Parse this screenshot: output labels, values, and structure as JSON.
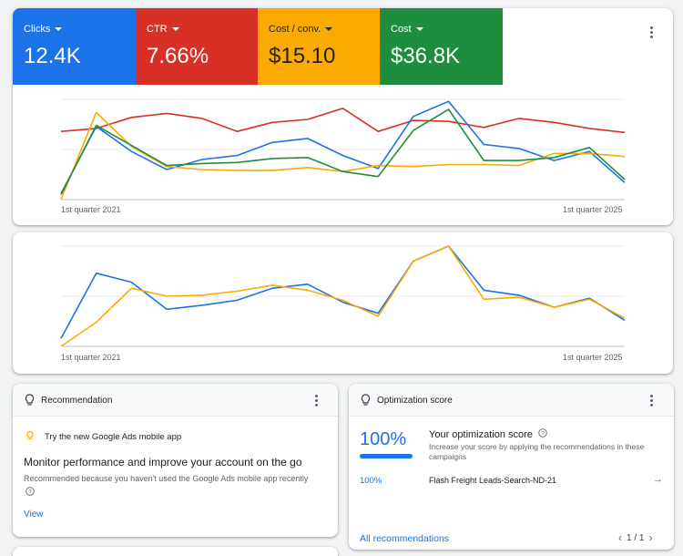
{
  "metrics": [
    {
      "label": "Clicks",
      "value": "12.4K",
      "color": "#1a73e8"
    },
    {
      "label": "CTR",
      "value": "7.66%",
      "color": "#d93025"
    },
    {
      "label": "Cost / conv.",
      "value": "$15.10",
      "color": "#f9ab00"
    },
    {
      "label": "Cost",
      "value": "$36.8K",
      "color": "#1e8e3e"
    }
  ],
  "chart1": {
    "x_start": "1st quarter 2021",
    "x_end": "1st quarter 2025"
  },
  "chart2": {
    "x_start": "1st quarter 2021",
    "x_end": "1st quarter 2025"
  },
  "chart_data": [
    {
      "type": "line",
      "xlabels": [
        "1st quarter 2021",
        "1st quarter 2025"
      ],
      "grid": true,
      "series": [
        {
          "color": "#d93025",
          "values": [
            0.68,
            0.71,
            0.82,
            0.86,
            0.81,
            0.68,
            0.77,
            0.8,
            0.91,
            0.68,
            0.79,
            0.78,
            0.72,
            0.81,
            0.77,
            0.71,
            0.67
          ]
        },
        {
          "color": "#1a73e8",
          "values": [
            0.06,
            0.73,
            0.48,
            0.3,
            0.4,
            0.44,
            0.57,
            0.61,
            0.44,
            0.31,
            0.83,
            0.98,
            0.55,
            0.51,
            0.39,
            0.48,
            0.17
          ]
        },
        {
          "color": "#f9ab00",
          "values": [
            0.0,
            0.87,
            0.53,
            0.33,
            0.3,
            0.29,
            0.29,
            0.32,
            0.28,
            0.34,
            0.33,
            0.35,
            0.35,
            0.34,
            0.46,
            0.46,
            0.43
          ]
        },
        {
          "color": "#1e8e3e",
          "values": [
            0.05,
            0.74,
            0.54,
            0.34,
            0.36,
            0.37,
            0.41,
            0.42,
            0.28,
            0.23,
            0.69,
            0.9,
            0.39,
            0.39,
            0.42,
            0.52,
            0.2
          ]
        }
      ]
    },
    {
      "type": "line",
      "xlabels": [
        "1st quarter 2021",
        "1st quarter 2025"
      ],
      "grid": true,
      "series": [
        {
          "color": "#1a73e8",
          "values": [
            0.08,
            0.73,
            0.64,
            0.37,
            0.41,
            0.46,
            0.58,
            0.62,
            0.44,
            0.33,
            0.85,
            1.0,
            0.56,
            0.51,
            0.39,
            0.48,
            0.26
          ]
        },
        {
          "color": "#f9ab00",
          "values": [
            0.0,
            0.24,
            0.58,
            0.5,
            0.51,
            0.55,
            0.61,
            0.56,
            0.46,
            0.3,
            0.85,
            1.0,
            0.47,
            0.49,
            0.39,
            0.47,
            0.28
          ]
        }
      ]
    }
  ],
  "recommendation": {
    "header": "Recommendation",
    "tip": "Try the new Google Ads mobile app",
    "title": "Monitor performance and improve your account on the go",
    "reason": "Recommended because you haven't used the Google Ads mobile app recently",
    "view": "View"
  },
  "optimization": {
    "header": "Optimization score",
    "score": "100%",
    "title": "Your optimization score",
    "description": "Increase your score by applying the recommendations in these campaigns",
    "row_pct": "100%",
    "row_name": "Flash Freight Leads-Search-ND-21",
    "all_link": "All recommendations",
    "pager": "1 / 1"
  }
}
